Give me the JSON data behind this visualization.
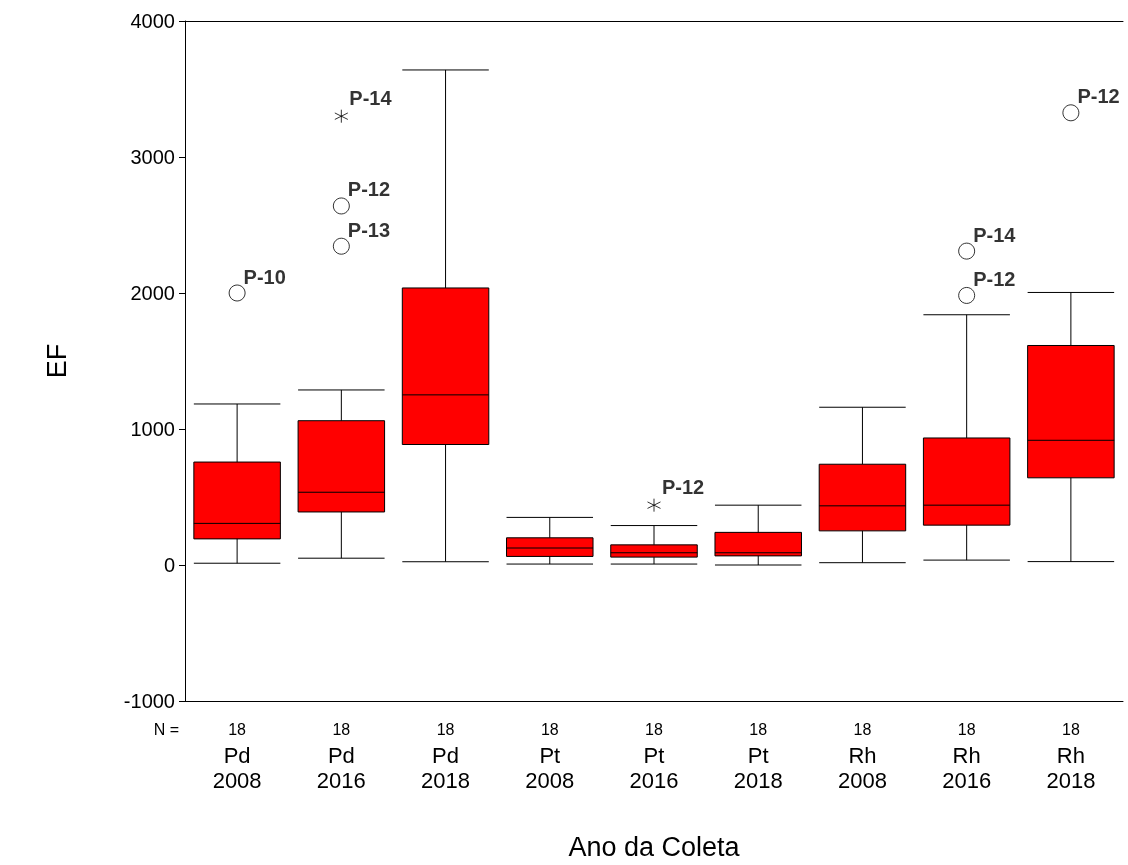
{
  "chart_data": {
    "type": "box",
    "xlabel": "Ano da Coleta",
    "ylabel": "EF",
    "categories": [
      "Pd\n2008",
      "Pd\n2016",
      "Pd\n2018",
      "Pt\n2008",
      "Pt\n2016",
      "Pt\n2018",
      "Rh\n2008",
      "Rh\n2016",
      "Rh\n2018"
    ],
    "color": "#ff0000",
    "boxes": [
      {
        "low": 13,
        "q1": 192,
        "median": 306,
        "q3": 757,
        "high": 1184
      },
      {
        "low": 50,
        "q1": 390,
        "median": 535,
        "q3": 1061,
        "high": 1287
      },
      {
        "low": 24,
        "q1": 886,
        "median": 1251,
        "q3": 2037,
        "high": 3640
      },
      {
        "low": 7,
        "q1": 63,
        "median": 125,
        "q3": 200,
        "high": 350
      },
      {
        "low": 7,
        "q1": 58,
        "median": 90,
        "q3": 148,
        "high": 290
      },
      {
        "low": 0,
        "q1": 67,
        "median": 90,
        "q3": 240,
        "high": 440
      },
      {
        "low": 17,
        "q1": 251,
        "median": 435,
        "q3": 741,
        "high": 1160
      },
      {
        "low": 36,
        "q1": 293,
        "median": 440,
        "q3": 934,
        "high": 1840
      },
      {
        "low": 25,
        "q1": 641,
        "median": 917,
        "q3": 1614,
        "high": 2004
      }
    ],
    "series": [
      {
        "type": "scatter",
        "marker": "circle",
        "color": "#000000",
        "x": [
          "Pd\n2008",
          "Pd\n2016",
          "Pd\n2016",
          "Rh\n2016",
          "Rh\n2016",
          "Rh\n2018"
        ],
        "values": [
          2000,
          2640,
          2344,
          2308,
          1982,
          3325
        ],
        "value_labels": [
          "P-10",
          "P-12",
          "P-13",
          "P-14",
          "P-12",
          "P-12"
        ]
      },
      {
        "type": "scatter",
        "marker": "cross",
        "color": "#000000",
        "x": [
          "Pd\n2016",
          "Pt\n2016"
        ],
        "values": [
          3300,
          440
        ],
        "value_labels": [
          "P-14",
          "P-12"
        ]
      }
    ],
    "ylim": [
      -1000,
      4000
    ],
    "yticks": [
      -1000,
      0,
      1000,
      2000,
      3000,
      4000
    ],
    "annotations": [
      "N =",
      "18",
      "18",
      "18",
      "18",
      "18",
      "18",
      "18",
      "18",
      "18"
    ]
  }
}
